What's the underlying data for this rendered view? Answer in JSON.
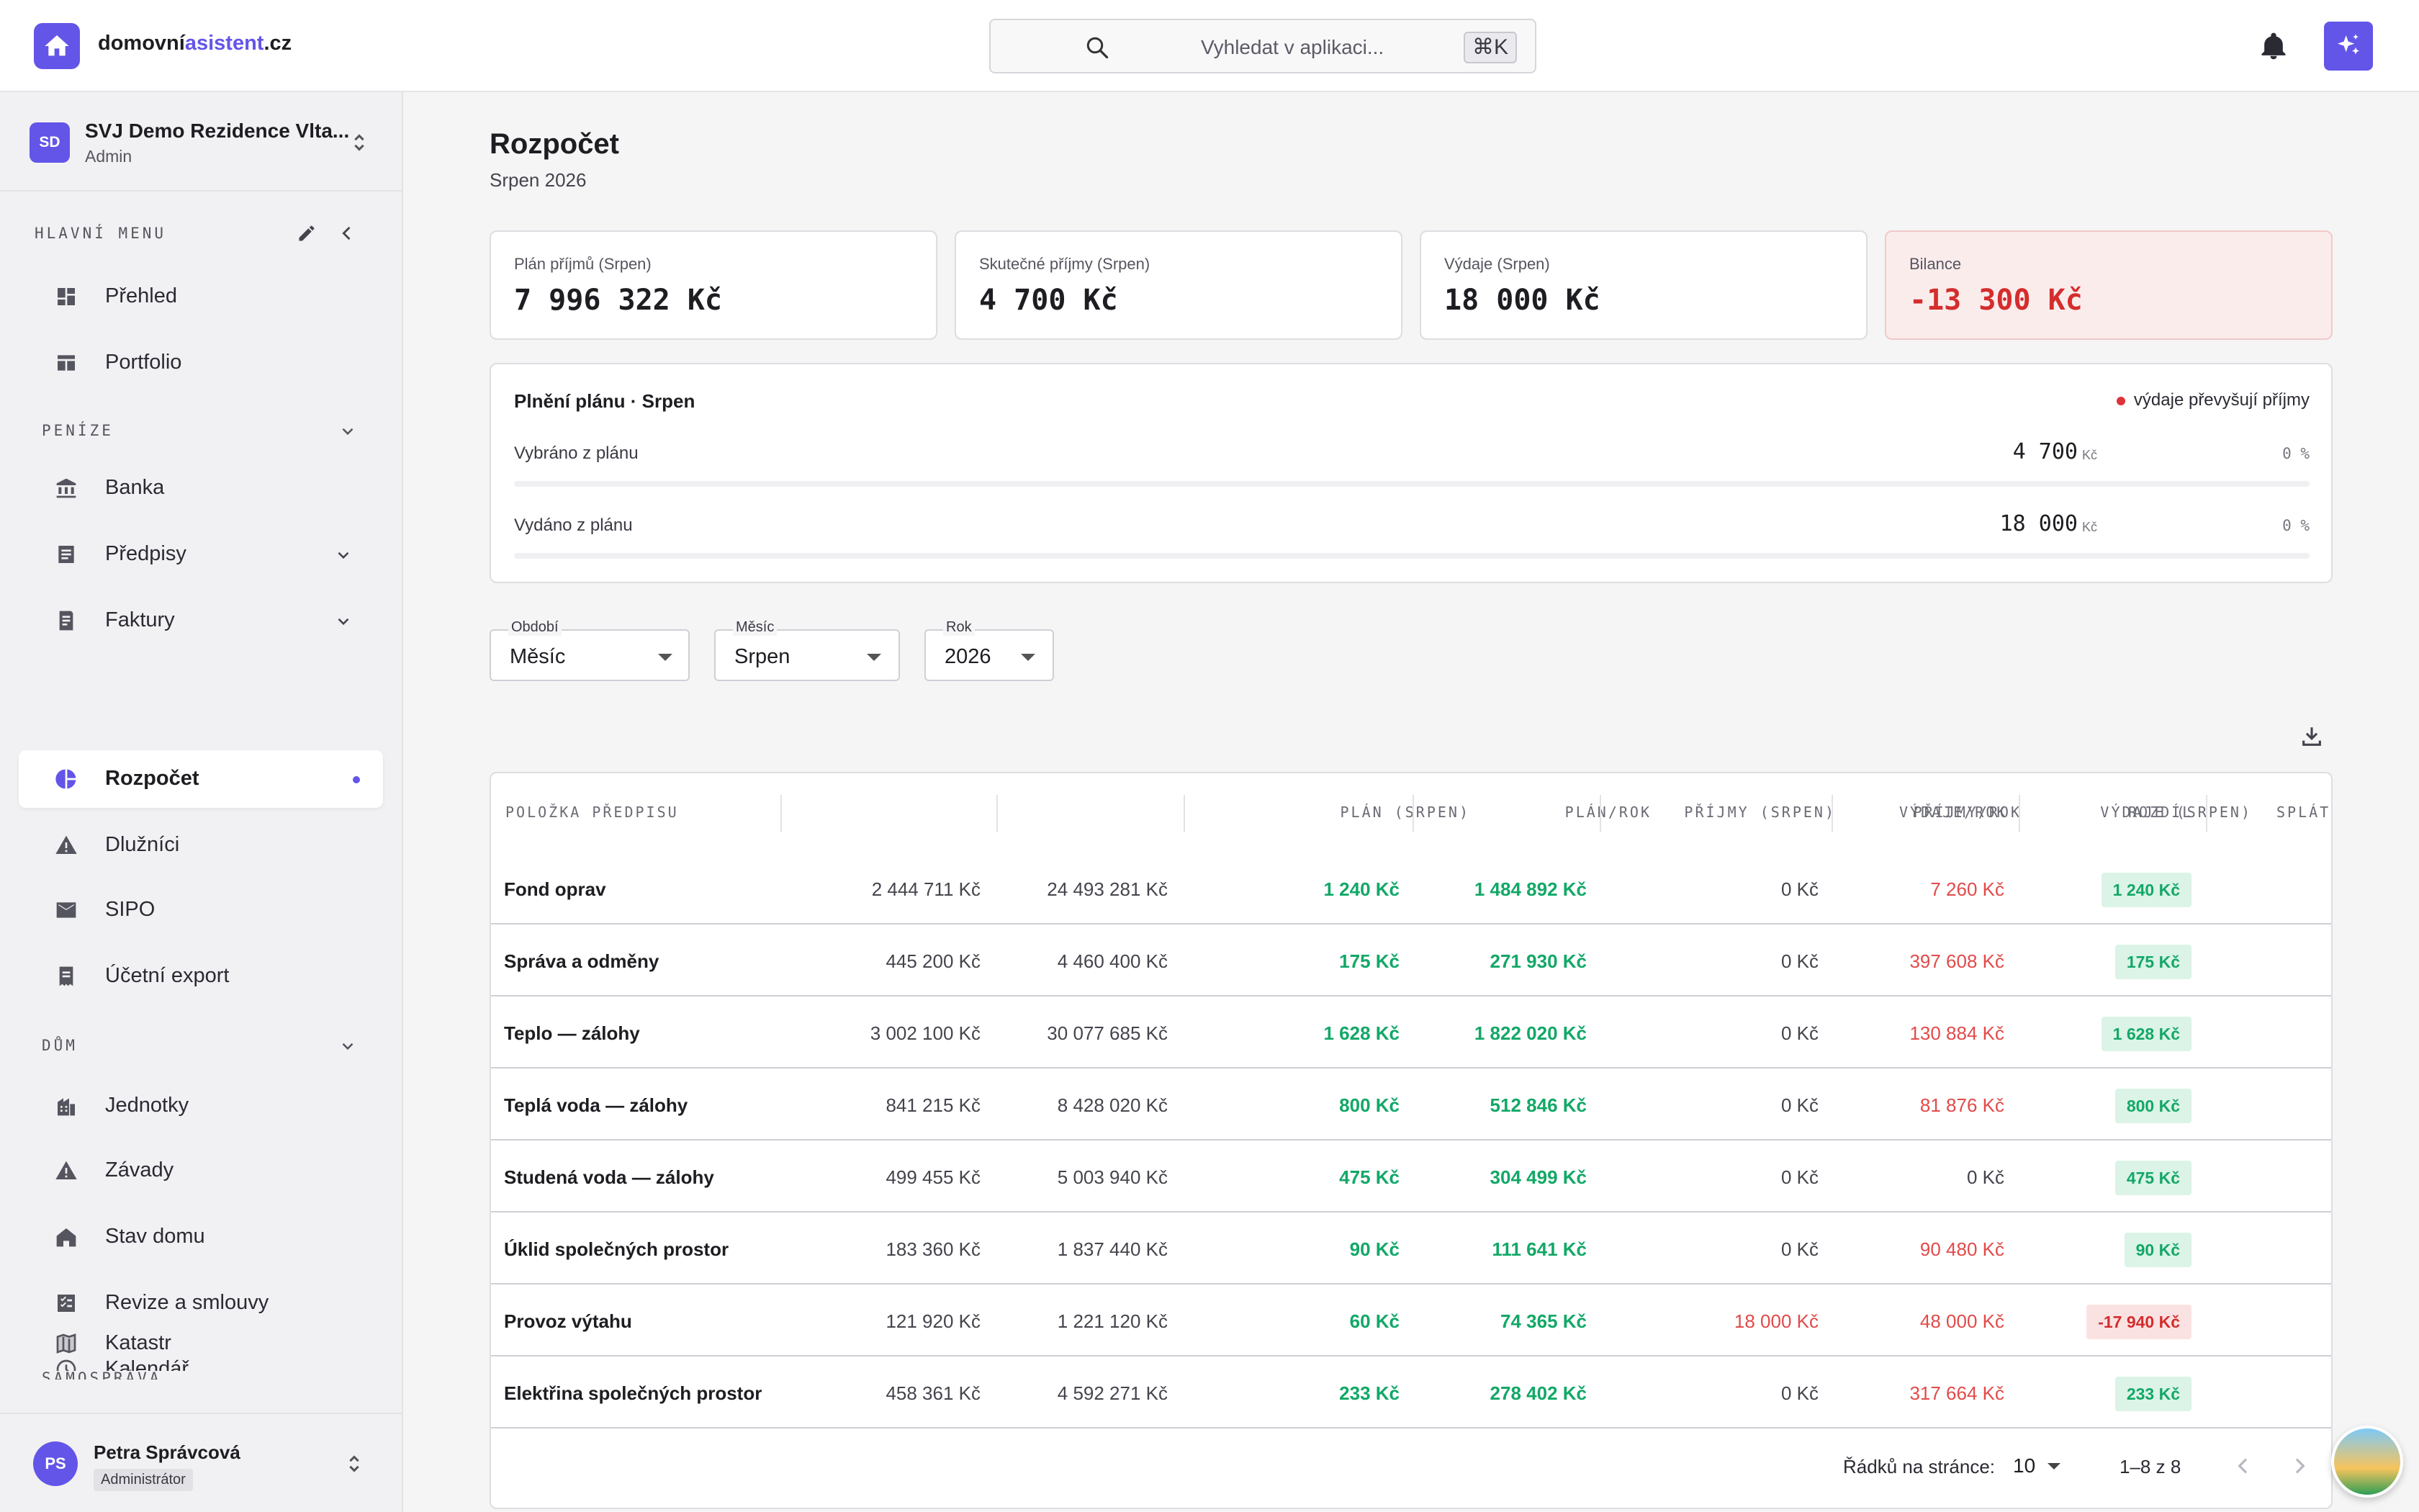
{
  "header": {
    "brand_prefix": "domovní",
    "brand_accent": "asistent",
    "brand_suffix": ".cz",
    "search_placeholder": "Vyhledat v aplikaci...",
    "search_shortcut": "⌘K",
    "accent_color": "#6355e8"
  },
  "sidebar": {
    "org": {
      "initials": "SD",
      "name": "SVJ Demo Rezidence Vlta...",
      "role": "Admin"
    },
    "section_main": "HLAVNÍ MENU",
    "section_money": "PENÍZE",
    "section_house": "DŮM",
    "section_self": "SAMOSPRÁVA",
    "items": {
      "prehled": "Přehled",
      "portfolio": "Portfolio",
      "banka": "Banka",
      "predpisy": "Předpisy",
      "faktury": "Faktury",
      "rozpocet": "Rozpočet",
      "dluznici": "Dlužníci",
      "sipo": "SIPO",
      "export": "Účetní export",
      "jednotky": "Jednotky",
      "zavady": "Závady",
      "stav": "Stav domu",
      "revize": "Revize a smlouvy",
      "kalendar": "Kalendář",
      "katastr": "Katastr"
    },
    "user": {
      "initials": "PS",
      "name": "Petra Správcová",
      "role": "Administrátor"
    }
  },
  "page": {
    "title": "Rozpočet",
    "subtitle": "Srpen 2026"
  },
  "cards": [
    {
      "label": "Plán příjmů (Srpen)",
      "value": "7 996 322 Kč"
    },
    {
      "label": "Skutečné příjmy (Srpen)",
      "value": "4 700 Kč"
    },
    {
      "label": "Výdaje (Srpen)",
      "value": "18 000 Kč"
    },
    {
      "label": "Bilance",
      "value": "-13 300 Kč"
    }
  ],
  "plan": {
    "title": "Plnění plánu · Srpen",
    "warning": "výdaje převyšují příjmy",
    "row1": {
      "label": "Vybráno z plánu",
      "value": "4 700",
      "unit": "Kč",
      "percent": "0 %"
    },
    "row2": {
      "label": "Vydáno z plánu",
      "value": "18 000",
      "unit": "Kč",
      "percent": "0 %"
    }
  },
  "filters": {
    "period": {
      "label": "Období",
      "value": "Měsíc"
    },
    "month": {
      "label": "Měsíc",
      "value": "Srpen"
    },
    "year": {
      "label": "Rok",
      "value": "2026"
    }
  },
  "table": {
    "headers": [
      "Položka předpisu",
      "Plán (Srpen)",
      "Plán/rok",
      "Příjmy (Srpen)",
      "Příjmy/rok",
      "Výdaje (Srpen)",
      "Výdaje/rok",
      "Rozdíl",
      "Splátk"
    ],
    "rows": [
      {
        "name": "Fond oprav",
        "plan": "2 444 711 Kč",
        "plan_year": "24 493 281 Kč",
        "income": "1 240 Kč",
        "income_year": "1 484 892 Kč",
        "exp": "0 Kč",
        "exp_year": "7 260 Kč",
        "diff": "1 240 Kč"
      },
      {
        "name": "Správa a odměny",
        "plan": "445 200 Kč",
        "plan_year": "4 460 400 Kč",
        "income": "175 Kč",
        "income_year": "271 930 Kč",
        "exp": "0 Kč",
        "exp_year": "397 608 Kč",
        "diff": "175 Kč"
      },
      {
        "name": "Teplo — zálohy",
        "plan": "3 002 100 Kč",
        "plan_year": "30 077 685 Kč",
        "income": "1 628 Kč",
        "income_year": "1 822 020 Kč",
        "exp": "0 Kč",
        "exp_year": "130 884 Kč",
        "diff": "1 628 Kč"
      },
      {
        "name": "Teplá voda — zálohy",
        "plan": "841 215 Kč",
        "plan_year": "8 428 020 Kč",
        "income": "800 Kč",
        "income_year": "512 846 Kč",
        "exp": "0 Kč",
        "exp_year": "81 876 Kč",
        "diff": "800 Kč"
      },
      {
        "name": "Studená voda — zálohy",
        "plan": "499 455 Kč",
        "plan_year": "5 003 940 Kč",
        "income": "475 Kč",
        "income_year": "304 499 Kč",
        "exp": "0 Kč",
        "exp_year": "0 Kč",
        "diff": "475 Kč"
      },
      {
        "name": "Úklid společných prostor",
        "plan": "183 360 Kč",
        "plan_year": "1 837 440 Kč",
        "income": "90 Kč",
        "income_year": "111 641 Kč",
        "exp": "0 Kč",
        "exp_year": "90 480 Kč",
        "diff": "90 Kč"
      },
      {
        "name": "Provoz výtahu",
        "plan": "121 920 Kč",
        "plan_year": "1 221 120 Kč",
        "income": "60 Kč",
        "income_year": "74 365 Kč",
        "exp": "18 000 Kč",
        "exp_year": "48 000 Kč",
        "diff": "-17 940 Kč"
      },
      {
        "name": "Elektřina společných prostor",
        "plan": "458 361 Kč",
        "plan_year": "4 592 271 Kč",
        "income": "233 Kč",
        "income_year": "278 402 Kč",
        "exp": "0 Kč",
        "exp_year": "317 664 Kč",
        "diff": "233 Kč"
      }
    ],
    "footer": {
      "rows_per_page_label": "Řádků na stránce:",
      "rows_per_page": "10",
      "range": "1–8 z 8"
    }
  }
}
